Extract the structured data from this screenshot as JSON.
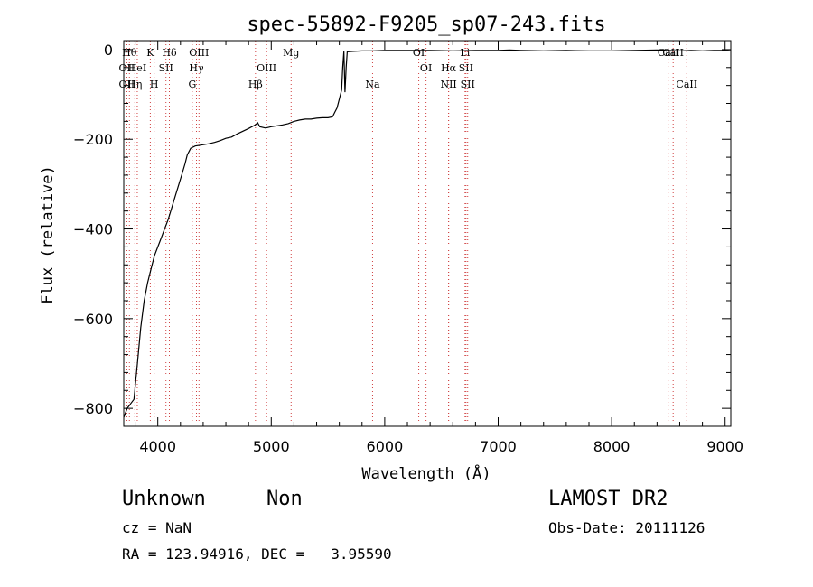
{
  "chart_data": {
    "type": "line",
    "title": "spec-55892-F9205_sp07-243.fits",
    "xlabel": "Wavelength (Å)",
    "ylabel": "Flux (relative)",
    "xlim": [
      3700,
      9050
    ],
    "ylim": [
      -840,
      20
    ],
    "x_ticks": [
      4000,
      5000,
      6000,
      7000,
      8000,
      9000
    ],
    "y_ticks": [
      0,
      -200,
      -400,
      -600,
      -800
    ],
    "grid": false,
    "series": [
      {
        "color": "#000000",
        "points": [
          [
            3700,
            -820
          ],
          [
            3730,
            -800
          ],
          [
            3760,
            -790
          ],
          [
            3790,
            -780
          ],
          [
            3820,
            -700
          ],
          [
            3850,
            -620
          ],
          [
            3880,
            -560
          ],
          [
            3910,
            -520
          ],
          [
            3940,
            -490
          ],
          [
            3970,
            -460
          ],
          [
            4000,
            -440
          ],
          [
            4030,
            -420
          ],
          [
            4060,
            -400
          ],
          [
            4090,
            -380
          ],
          [
            4120,
            -355
          ],
          [
            4150,
            -330
          ],
          [
            4180,
            -305
          ],
          [
            4210,
            -280
          ],
          [
            4240,
            -255
          ],
          [
            4260,
            -235
          ],
          [
            4290,
            -220
          ],
          [
            4330,
            -215
          ],
          [
            4380,
            -213
          ],
          [
            4450,
            -210
          ],
          [
            4500,
            -207
          ],
          [
            4550,
            -203
          ],
          [
            4600,
            -198
          ],
          [
            4650,
            -195
          ],
          [
            4700,
            -188
          ],
          [
            4750,
            -182
          ],
          [
            4800,
            -176
          ],
          [
            4860,
            -168
          ],
          [
            4880,
            -163
          ],
          [
            4900,
            -172
          ],
          [
            4950,
            -175
          ],
          [
            5000,
            -172
          ],
          [
            5050,
            -170
          ],
          [
            5100,
            -168
          ],
          [
            5150,
            -165
          ],
          [
            5200,
            -160
          ],
          [
            5250,
            -157
          ],
          [
            5300,
            -155
          ],
          [
            5350,
            -155
          ],
          [
            5400,
            -153
          ],
          [
            5450,
            -152
          ],
          [
            5500,
            -152
          ],
          [
            5540,
            -150
          ],
          [
            5560,
            -140
          ],
          [
            5580,
            -130
          ],
          [
            5600,
            -110
          ],
          [
            5620,
            -90
          ],
          [
            5630,
            -40
          ],
          [
            5640,
            -4
          ],
          [
            5650,
            -95
          ],
          [
            5660,
            -40
          ],
          [
            5670,
            -5
          ],
          [
            5720,
            -4
          ],
          [
            5800,
            -3
          ],
          [
            5900,
            -3
          ],
          [
            6000,
            -2
          ],
          [
            6200,
            -2
          ],
          [
            6400,
            -2
          ],
          [
            6600,
            -3
          ],
          [
            6800,
            -2
          ],
          [
            7000,
            -2
          ],
          [
            7100,
            -1
          ],
          [
            7200,
            -2
          ],
          [
            7400,
            -3
          ],
          [
            7600,
            -2
          ],
          [
            7800,
            -3
          ],
          [
            8000,
            -3
          ],
          [
            8200,
            -2
          ],
          [
            8400,
            -1
          ],
          [
            8500,
            -2
          ],
          [
            8600,
            -3
          ],
          [
            8700,
            -2
          ],
          [
            8800,
            -3
          ],
          [
            8900,
            -2
          ],
          [
            9000,
            -2
          ],
          [
            9050,
            -3
          ]
        ]
      }
    ],
    "line_markers": [
      {
        "w": 3727,
        "label": "OII",
        "row": 2
      },
      {
        "w": 3727,
        "label": "OII",
        "row": 3
      },
      {
        "w": 3750,
        "label": "Hθ",
        "row": 1
      },
      {
        "w": 3798,
        "label": "Hη",
        "row": 3
      },
      {
        "w": 3819,
        "label": "HeI",
        "row": 2
      },
      {
        "w": 3934,
        "label": "K",
        "row": 1
      },
      {
        "w": 3968,
        "label": "H",
        "row": 3
      },
      {
        "w": 4072,
        "label": "SII",
        "row": 2
      },
      {
        "w": 4102,
        "label": "Hδ",
        "row": 1
      },
      {
        "w": 4304,
        "label": "G",
        "row": 3
      },
      {
        "w": 4341,
        "label": "Hγ",
        "row": 2
      },
      {
        "w": 4363,
        "label": "OIII",
        "row": 1
      },
      {
        "w": 4861,
        "label": "Hβ",
        "row": 3
      },
      {
        "w": 4959,
        "label": "OIII",
        "row": 2
      },
      {
        "w": 5175,
        "label": "Mg",
        "row": 1
      },
      {
        "w": 5893,
        "label": "Na",
        "row": 3
      },
      {
        "w": 6300,
        "label": "OI",
        "row": 1
      },
      {
        "w": 6364,
        "label": "OI",
        "row": 2
      },
      {
        "w": 6563,
        "label": "Hα",
        "row": 2
      },
      {
        "w": 6563,
        "label": "NII",
        "row": 3
      },
      {
        "w": 6708,
        "label": "Li",
        "row": 1
      },
      {
        "w": 6716,
        "label": "SII",
        "row": 2
      },
      {
        "w": 6731,
        "label": "SII",
        "row": 3
      },
      {
        "w": 8498,
        "label": "CaII",
        "row": 1
      },
      {
        "w": 8542,
        "label": "CaII",
        "row": 1
      },
      {
        "w": 8662,
        "label": "CaII",
        "row": 3
      }
    ]
  },
  "info": {
    "class": "Unknown",
    "subclass": "Non",
    "survey": "LAMOST DR2",
    "cz": "cz = NaN",
    "obs_date": "Obs-Date: 20111126",
    "coords": "RA = 123.94916, DEC =   3.95590"
  },
  "colors": {
    "marker_line": "#d04040",
    "spectrum": "#000000"
  }
}
